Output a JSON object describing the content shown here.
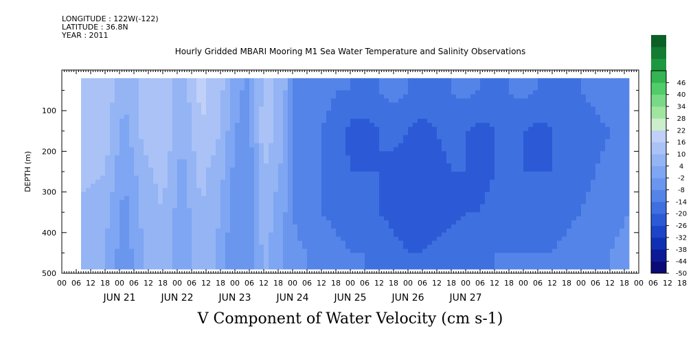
{
  "header": {
    "longitude": "LONGITUDE : 122W(-122)",
    "latitude": "LATITUDE : 36.8N",
    "year": "YEAR : 2011"
  },
  "chart_data": {
    "type": "heatmap",
    "title": "Hourly Gridded MBARI Mooring M1 Sea Water Temperature and Salinity Observations",
    "xlabel": "V Component of Water Velocity (cm s-1)",
    "ylabel": "DEPTH (m)",
    "x_unit": "hours since JUN 21 00",
    "xlim": [
      -12,
      228
    ],
    "ylim": [
      500,
      0
    ],
    "y_ticks": [
      100,
      200,
      300,
      400,
      500
    ],
    "x_hour_ticks": [
      "00",
      "06",
      "12",
      "18",
      "00",
      "06",
      "12",
      "18",
      "00",
      "06",
      "12",
      "18",
      "00",
      "06",
      "12",
      "18",
      "00",
      "06",
      "12",
      "18",
      "00",
      "06",
      "12",
      "18",
      "00",
      "06",
      "12",
      "18",
      "00",
      "06",
      "12",
      "18",
      "00",
      "06",
      "12",
      "18",
      "00",
      "06",
      "12",
      "18",
      "00",
      "06",
      "12",
      "18"
    ],
    "day_labels": [
      "JUN 21",
      "JUN 22",
      "JUN 23",
      "JUN 24",
      "JUN 25",
      "JUN 26",
      "JUN 27"
    ],
    "data_extent": {
      "x": [
        -4,
        224
      ],
      "depth": [
        20,
        490
      ]
    },
    "colorbar": {
      "min": -50,
      "max": 52,
      "step": 6,
      "tick_labels": [
        "46",
        "40",
        "34",
        "28",
        "22",
        "16",
        "10",
        "4",
        "-2",
        "-8",
        "-14",
        "-20",
        "-26",
        "-32",
        "-38",
        "-44",
        "-50"
      ],
      "colors": [
        "#0a0a78",
        "#0c1a96",
        "#1030b4",
        "#1c44c8",
        "#2c5ad6",
        "#3e70e0",
        "#5484e8",
        "#6a96ee",
        "#7ea6f2",
        "#94b4f4",
        "#aac2f6",
        "#c0d0f8",
        "#cceecc",
        "#a0e6a0",
        "#78da86",
        "#50cc6a",
        "#34b452",
        "#1e9840",
        "#147c32",
        "#0c6026"
      ]
    },
    "series": [
      {
        "x": [
          -4,
          6,
          14,
          22,
          30,
          38,
          46,
          54,
          60,
          66,
          72,
          80,
          84,
          90,
          96,
          102,
          108,
          114,
          120,
          126,
          132,
          138,
          144,
          150,
          156,
          162,
          168,
          174,
          180,
          186,
          192,
          198,
          204,
          210,
          216,
          224
        ],
        "depth": [
          50,
          150,
          250,
          350,
          450
        ],
        "values": [
          [
            16,
            14,
            4,
            12,
            14,
            6,
            18,
            12,
            0,
            -4,
            12,
            8,
            -8,
            -10,
            -12,
            -14,
            -14,
            -16,
            -14,
            -12,
            -14,
            -16,
            -16,
            -14,
            -12,
            -14,
            -16,
            -14,
            -12,
            -14,
            -16,
            -16,
            -14,
            -12,
            -10,
            -10
          ],
          [
            14,
            14,
            2,
            12,
            16,
            4,
            16,
            10,
            -2,
            -4,
            14,
            6,
            -8,
            -12,
            -14,
            -16,
            -22,
            -22,
            -20,
            -18,
            -20,
            -22,
            -20,
            -18,
            -20,
            -22,
            -20,
            -18,
            -20,
            -22,
            -20,
            -20,
            -18,
            -16,
            -14,
            -12
          ],
          [
            12,
            10,
            -2,
            8,
            12,
            2,
            12,
            6,
            -4,
            -6,
            10,
            2,
            -8,
            -12,
            -14,
            -16,
            -20,
            -20,
            -20,
            -22,
            -24,
            -24,
            -22,
            -20,
            -20,
            -22,
            -20,
            -18,
            -20,
            -20,
            -20,
            -18,
            -16,
            -14,
            -12,
            -10
          ],
          [
            8,
            6,
            -4,
            6,
            10,
            0,
            10,
            4,
            -6,
            -8,
            8,
            0,
            -8,
            -12,
            -14,
            -16,
            -18,
            -18,
            -20,
            -22,
            -24,
            -26,
            -24,
            -22,
            -20,
            -20,
            -18,
            -18,
            -18,
            -18,
            -18,
            -16,
            -14,
            -12,
            -10,
            -8
          ],
          [
            6,
            4,
            -6,
            4,
            8,
            -2,
            8,
            2,
            -8,
            -8,
            6,
            -2,
            -6,
            -8,
            -10,
            -12,
            -14,
            -14,
            -16,
            -18,
            -20,
            -20,
            -18,
            -16,
            -16,
            -16,
            -14,
            -14,
            -14,
            -14,
            -14,
            -12,
            -10,
            -10,
            -8,
            -6
          ]
        ]
      }
    ]
  }
}
